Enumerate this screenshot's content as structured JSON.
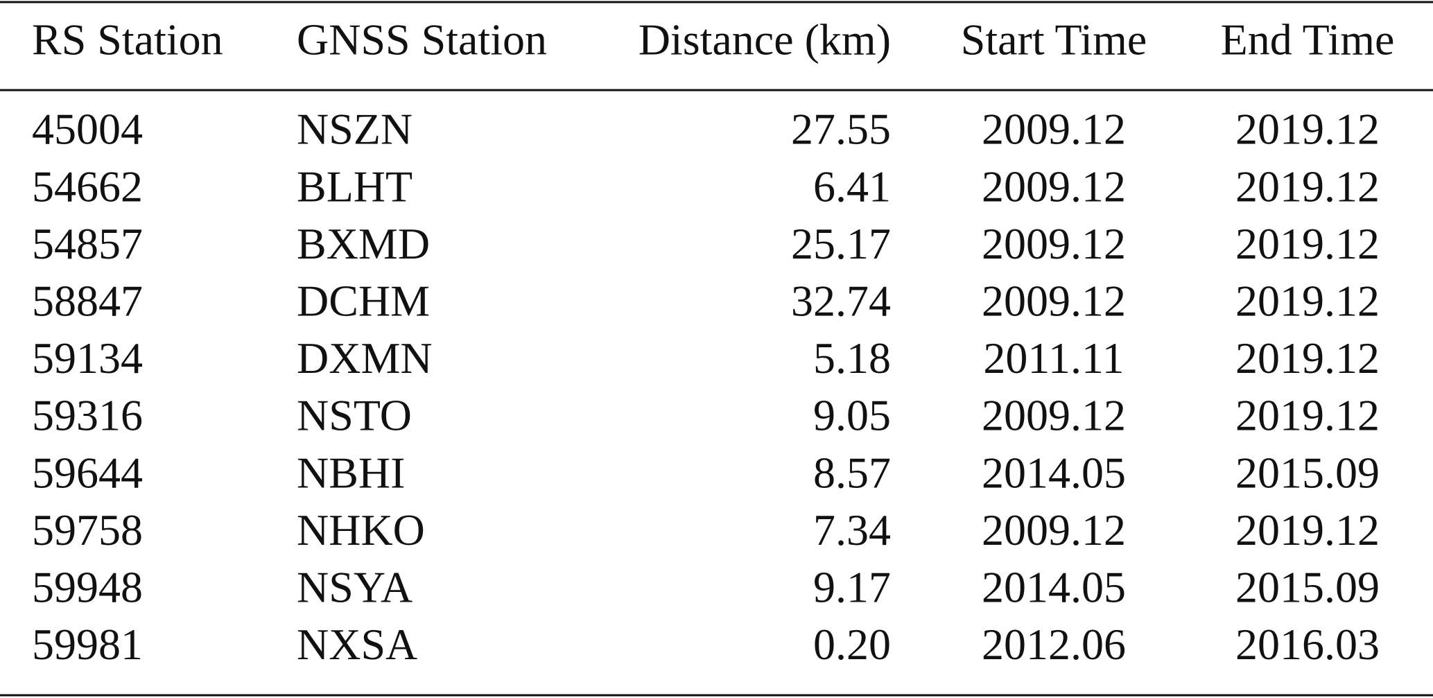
{
  "table": {
    "header": [
      "RS Station",
      "GNSS Station",
      "Distance (km)",
      "Start Time",
      "End Time"
    ],
    "rows": [
      [
        "45004",
        "NSZN",
        "27.55",
        "2009.12",
        "2019.12"
      ],
      [
        "54662",
        "BLHT",
        "6.41",
        "2009.12",
        "2019.12"
      ],
      [
        "54857",
        "BXMD",
        "25.17",
        "2009.12",
        "2019.12"
      ],
      [
        "58847",
        "DCHM",
        "32.74",
        "2009.12",
        "2019.12"
      ],
      [
        "59134",
        "DXMN",
        "5.18",
        "2011.11",
        "2019.12"
      ],
      [
        "59316",
        "NSTO",
        "9.05",
        "2009.12",
        "2019.12"
      ],
      [
        "59644",
        "NBHI",
        "8.57",
        "2014.05",
        "2015.09"
      ],
      [
        "59758",
        "NHKO",
        "7.34",
        "2009.12",
        "2019.12"
      ],
      [
        "59948",
        "NSYA",
        "9.17",
        "2014.05",
        "2015.09"
      ],
      [
        "59981",
        "NXSA",
        "0.20",
        "2012.06",
        "2016.03"
      ]
    ]
  }
}
